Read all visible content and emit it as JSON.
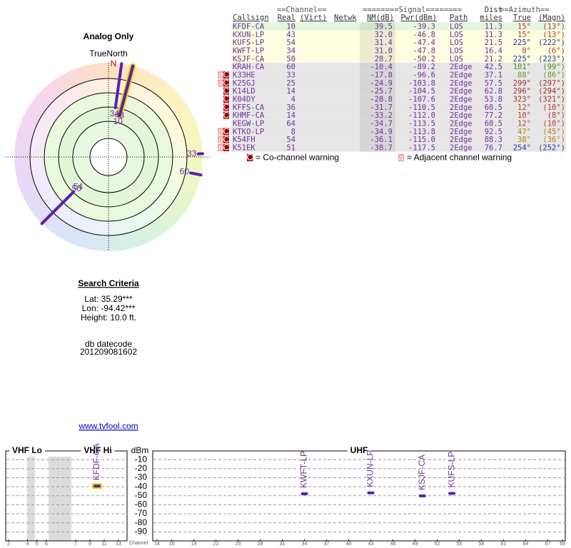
{
  "chart_data": [
    {
      "type": "polar",
      "title": "Analog Only",
      "north_label": "TrueNorth",
      "north": "N",
      "color": "#5b1fb0",
      "highlight": "#f5d400"
    },
    {
      "type": "spectrum",
      "y_label": "dBm",
      "x_label": "Channel",
      "ylim": [
        -100,
        0
      ],
      "yticks": [
        -10,
        -20,
        -30,
        -40,
        -50,
        -60,
        -70,
        -80,
        -90
      ],
      "grid": true,
      "color": "#5b1fb0",
      "highlight": "#f5d400",
      "bands": [
        {
          "name": "VHF Lo",
          "xlim": [
            2,
            6
          ],
          "xticks": [
            2,
            4,
            5,
            6
          ]
        },
        {
          "name": "VHF Hi",
          "xlim": [
            7,
            13
          ],
          "xticks": [
            7,
            9,
            11,
            13
          ]
        },
        {
          "name": "UHF",
          "xlim": [
            14,
            69
          ],
          "xticks": [
            14,
            16,
            19,
            22,
            25,
            28,
            31,
            34,
            37,
            40,
            43,
            46,
            49,
            52,
            55,
            58,
            61,
            64,
            67,
            69
          ]
        }
      ]
    }
  ],
  "table": {
    "group_headers": [
      "==Channel==",
      "========Signal========",
      "==Azimuth=="
    ],
    "dist_header": "Dist",
    "headers": [
      "Callsign",
      "Real",
      "(Virt)",
      "Netwk",
      "NM(dB)",
      "Pwr(dBm)",
      "Path",
      "miles",
      "True",
      "(Magn)"
    ],
    "rows": [
      {
        "warn": [],
        "callsign": "KFDF-CA",
        "real": 10,
        "nm": 39.5,
        "pwr": -39.3,
        "path": "LOS",
        "dist": 11.3,
        "az_true": {
          "value": 15,
          "label": "15°"
        },
        "az_magn": {
          "value": 13,
          "label": "(13°)"
        },
        "bg": "#e4f6dc",
        "az_color": "#c0392b"
      },
      {
        "warn": [],
        "callsign": "KXUN-LP",
        "real": 43,
        "nm": {
          "value": 32,
          "label": "32.0"
        },
        "pwr": -46.8,
        "path": "LOS",
        "dist": 11.3,
        "az_true": {
          "value": 15,
          "label": "15°"
        },
        "az_magn": {
          "value": 13,
          "label": "(13°)"
        },
        "bg": "#fdfde0",
        "az_color": "#c0392b"
      },
      {
        "warn": [],
        "callsign": "KUFS-LP",
        "real": 54,
        "nm": 31.4,
        "pwr": -47.4,
        "path": "LOS",
        "dist": 21.5,
        "az_true": {
          "value": 225,
          "label": "225°"
        },
        "az_magn": {
          "value": 222,
          "label": "(222°)"
        },
        "bg": "#fdfde0",
        "az_color": "#1f3c9c"
      },
      {
        "warn": [],
        "callsign": "KWFT-LP",
        "real": 34,
        "nm": {
          "value": 31,
          "label": "31.0"
        },
        "pwr": -47.8,
        "path": "LOS",
        "dist": 16.4,
        "az_true": {
          "value": 8,
          "label": "8°"
        },
        "az_magn": {
          "value": 6,
          "label": "(6°)"
        },
        "bg": "#fdfde0",
        "az_color": "#c0392b"
      },
      {
        "warn": [],
        "callsign": "KSJF-CA",
        "real": 50,
        "nm": 28.7,
        "pwr": -50.2,
        "path": "LOS",
        "dist": 21.2,
        "az_true": {
          "value": 225,
          "label": "225°"
        },
        "az_magn": {
          "value": 223,
          "label": "(223°)"
        },
        "bg": "#fdfde0",
        "az_color": "#1f3c9c"
      },
      {
        "warn": [],
        "callsign": "KRAH-CA",
        "real": 60,
        "nm": -10.4,
        "pwr": -89.2,
        "path": "2Edge",
        "dist": 42.5,
        "az_true": {
          "value": 101,
          "label": "101°"
        },
        "az_magn": {
          "value": 99,
          "label": "(99°)"
        },
        "bg": "#e6e6e6",
        "az_color": "#4e8a1e"
      },
      {
        "warn": [
          "a",
          "C"
        ],
        "callsign": "K33HE",
        "real": 33,
        "nm": -17.8,
        "pwr": -96.6,
        "path": "2Edge",
        "dist": 37.1,
        "az_true": {
          "value": 88,
          "label": "88°"
        },
        "az_magn": {
          "value": 86,
          "label": "(86°)"
        },
        "bg": "#e6e6e6",
        "az_color": "#6a9a2a"
      },
      {
        "warn": [
          "a",
          "C"
        ],
        "callsign": "K25GJ",
        "real": 25,
        "nm": -24.9,
        "pwr": -103.8,
        "path": "2Edge",
        "dist": 57.5,
        "az_true": {
          "value": 299,
          "label": "299°"
        },
        "az_magn": {
          "value": 297,
          "label": "(297°)"
        },
        "bg": "#e6e6e6",
        "az_color": "#a0302a"
      },
      {
        "warn": [
          "C"
        ],
        "callsign": "K14LD",
        "real": 14,
        "nm": -25.7,
        "pwr": -104.5,
        "path": "2Edge",
        "dist": 62.8,
        "az_true": {
          "value": 296,
          "label": "296°"
        },
        "az_magn": {
          "value": 294,
          "label": "(294°)"
        },
        "bg": "#e6e6e6",
        "az_color": "#a0302a"
      },
      {
        "warn": [
          "C"
        ],
        "callsign": "K04DY",
        "real": 4,
        "nm": -28.8,
        "pwr": -107.6,
        "path": "2Edge",
        "dist": 53.8,
        "az_true": {
          "value": 323,
          "label": "323°"
        },
        "az_magn": {
          "value": 321,
          "label": "(321°)"
        },
        "bg": "#e6e6e6",
        "az_color": "#a0302a"
      },
      {
        "warn": [
          "C"
        ],
        "callsign": "KFFS-CA",
        "real": 36,
        "nm": -31.7,
        "pwr": -110.5,
        "path": "2Edge",
        "dist": 60.5,
        "az_true": {
          "value": 12,
          "label": "12°"
        },
        "az_magn": {
          "value": 10,
          "label": "(10°)"
        },
        "bg": "#e6e6e6",
        "az_color": "#c0392b"
      },
      {
        "warn": [
          "C"
        ],
        "callsign": "KHMF-CA",
        "real": 14,
        "nm": -33.2,
        "pwr": {
          "value": -112,
          "label": "-112.0"
        },
        "path": "2Edge",
        "dist": 77.2,
        "az_true": {
          "value": 10,
          "label": "10°"
        },
        "az_magn": {
          "value": 8,
          "label": "(8°)"
        },
        "bg": "#e6e6e6",
        "az_color": "#c0392b"
      },
      {
        "warn": [],
        "callsign": "KEGW-LP",
        "real": 64,
        "nm": -34.7,
        "pwr": -113.5,
        "path": "2Edge",
        "dist": 60.5,
        "az_true": {
          "value": 12,
          "label": "12°"
        },
        "az_magn": {
          "value": 10,
          "label": "(10°)"
        },
        "bg": "#e6e6e6",
        "az_color": "#c0392b"
      },
      {
        "warn": [
          "a",
          "C"
        ],
        "callsign": "KTKO-LP",
        "real": 8,
        "nm": -34.9,
        "pwr": -113.8,
        "path": "2Edge",
        "dist": 92.5,
        "az_true": {
          "value": 47,
          "label": "47°"
        },
        "az_magn": {
          "value": 45,
          "label": "(45°)"
        },
        "bg": "#e6e6e6",
        "az_color": "#c07a10"
      },
      {
        "warn": [
          "a",
          "C"
        ],
        "callsign": "K54FH",
        "real": 54,
        "nm": -36.1,
        "pwr": {
          "value": -115,
          "label": "-115.0"
        },
        "path": "2Edge",
        "dist": 88.3,
        "az_true": {
          "value": 38,
          "label": "38°"
        },
        "az_magn": {
          "value": 36,
          "label": "(36°)"
        },
        "bg": "#e6e6e6",
        "az_color": "#c07a10"
      },
      {
        "warn": [
          "a",
          "C"
        ],
        "callsign": "K51EK",
        "real": 51,
        "nm": -38.7,
        "pwr": -117.5,
        "path": "2Edge",
        "dist": 76.7,
        "az_true": {
          "value": 254,
          "label": "254°"
        },
        "az_magn": {
          "value": 252,
          "label": "(252°)"
        },
        "bg": "#e6e6e6",
        "az_color": "#1f3c9c"
      }
    ],
    "legend": [
      {
        "icon": "C",
        "text": "= Co-channel warning",
        "color": "#a00000"
      },
      {
        "icon": "a",
        "text": "= Adjacent channel warning",
        "color": "#f0a0a0"
      }
    ]
  },
  "search": {
    "title": "Search Criteria",
    "lines": [
      "Lat: 35.29***",
      "Lon: -94.42***",
      "Height: 10.0 ft."
    ],
    "datecode_label": "db datecode",
    "datecode": "201209081602",
    "link": "www.tvfool.com"
  }
}
